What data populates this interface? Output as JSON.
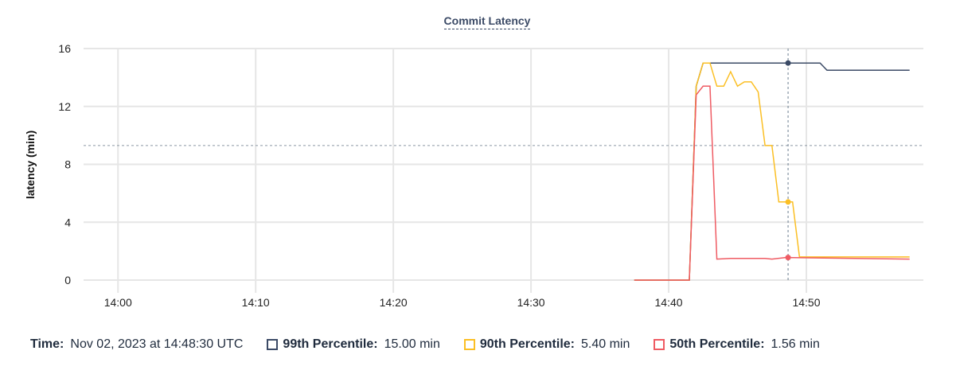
{
  "chart_data": {
    "type": "line",
    "title": "Commit Latency",
    "xlabel": "",
    "ylabel": "latency (min)",
    "xlim": [
      "13:57:30",
      "14:58:30"
    ],
    "ylim": [
      0,
      16
    ],
    "xticks": [
      "14:00",
      "14:10",
      "14:20",
      "14:30",
      "14:40",
      "14:50"
    ],
    "yticks": [
      0,
      4,
      8,
      12,
      16
    ],
    "grid": true,
    "threshold_line": 9.3,
    "crosshair_time": "14:48:30",
    "series": [
      {
        "name": "99th Percentile",
        "color": "#3b4a66",
        "x": [
          "14:37:30",
          "14:41:30",
          "14:42:00",
          "14:42:30",
          "14:51:00",
          "14:51:30",
          "14:57:30"
        ],
        "y": [
          0,
          0,
          13.4,
          15,
          15,
          14.5,
          14.5
        ]
      },
      {
        "name": "90th Percentile",
        "color": "#fbbf24",
        "x": [
          "14:37:30",
          "14:41:30",
          "14:42:00",
          "14:42:30",
          "14:43:00",
          "14:43:30",
          "14:44:00",
          "14:44:30",
          "14:45:00",
          "14:45:30",
          "14:46:00",
          "14:46:30",
          "14:47:00",
          "14:47:30",
          "14:48:00",
          "14:49:00",
          "14:49:30",
          "14:57:30"
        ],
        "y": [
          0,
          0,
          13.4,
          15,
          15,
          13.4,
          13.4,
          14.4,
          13.4,
          13.7,
          13.7,
          13.0,
          9.3,
          9.3,
          5.4,
          5.4,
          1.6,
          1.6
        ]
      },
      {
        "name": "50th Percentile",
        "color": "#ef5b63",
        "x": [
          "14:37:30",
          "14:41:30",
          "14:42:00",
          "14:42:30",
          "14:43:00",
          "14:43:30",
          "14:44:30",
          "14:47:00",
          "14:47:30",
          "14:48:30",
          "14:57:30"
        ],
        "y": [
          0,
          0,
          12.8,
          13.4,
          13.4,
          1.45,
          1.5,
          1.5,
          1.45,
          1.56,
          1.45
        ]
      }
    ]
  },
  "legend": {
    "time_label": "Time:",
    "time_value": "Nov 02, 2023 at 14:48:30 UTC",
    "items": [
      {
        "label": "99th Percentile:",
        "value": "15.00 min",
        "color": "#3b4a66"
      },
      {
        "label": "90th Percentile:",
        "value": "5.40 min",
        "color": "#fbbf24"
      },
      {
        "label": "50th Percentile:",
        "value": "1.56 min",
        "color": "#ef5b63"
      }
    ]
  }
}
